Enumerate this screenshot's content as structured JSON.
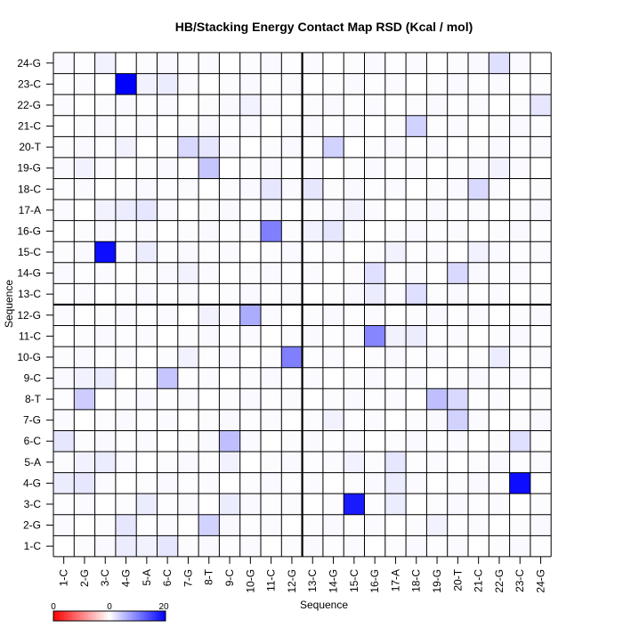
{
  "chart_data": {
    "type": "heatmap",
    "title": "HB/Stacking Energy Contact Map RSD (Kcal / mol)",
    "xlabel": "Sequence",
    "ylabel": "Sequence",
    "x_labels": [
      "1-C",
      "2-G",
      "3-C",
      "4-G",
      "5-A",
      "6-C",
      "7-G",
      "8-T",
      "9-C",
      "10-G",
      "11-C",
      "12-G",
      "13-C",
      "14-G",
      "15-C",
      "16-G",
      "17-A",
      "18-C",
      "19-G",
      "20-T",
      "21-C",
      "22-G",
      "23-C",
      "24-G"
    ],
    "y_labels": [
      "1-C",
      "2-G",
      "3-C",
      "4-G",
      "5-A",
      "6-C",
      "7-G",
      "8-T",
      "9-C",
      "10-G",
      "11-C",
      "12-G",
      "13-C",
      "14-G",
      "15-C",
      "16-G",
      "17-A",
      "18-C",
      "19-G",
      "20-T",
      "21-C",
      "22-G",
      "23-C",
      "24-G"
    ],
    "strand_divider_after": 12,
    "colorbar": {
      "min": 0,
      "mid": 0,
      "max": 20,
      "tick_labels": [
        "0",
        "0",
        "20"
      ]
    },
    "colors": {
      "low": "#ff0000",
      "zero": "#ffffff",
      "high": "#0000ff"
    },
    "default_value": 0.5,
    "cells": [
      {
        "row": "1-C",
        "col": "4-G",
        "value": 1.5
      },
      {
        "row": "1-C",
        "col": "5-A",
        "value": 1.0
      },
      {
        "row": "1-C",
        "col": "6-C",
        "value": 2.0
      },
      {
        "row": "2-G",
        "col": "4-G",
        "value": 2.0
      },
      {
        "row": "2-G",
        "col": "8-T",
        "value": 3.5
      },
      {
        "row": "2-G",
        "col": "19-G",
        "value": 1.0
      },
      {
        "row": "3-C",
        "col": "5-A",
        "value": 1.5
      },
      {
        "row": "3-C",
        "col": "9-C",
        "value": 1.5
      },
      {
        "row": "3-C",
        "col": "15-C",
        "value": 18
      },
      {
        "row": "3-C",
        "col": "17-A",
        "value": 1.5
      },
      {
        "row": "4-G",
        "col": "1-C",
        "value": 1.5
      },
      {
        "row": "4-G",
        "col": "2-G",
        "value": 2.0
      },
      {
        "row": "4-G",
        "col": "17-A",
        "value": 1.5
      },
      {
        "row": "4-G",
        "col": "23-C",
        "value": 19
      },
      {
        "row": "5-A",
        "col": "2-G",
        "value": 1.0
      },
      {
        "row": "5-A",
        "col": "3-C",
        "value": 1.5
      },
      {
        "row": "5-A",
        "col": "9-C",
        "value": 1.0
      },
      {
        "row": "5-A",
        "col": "15-C",
        "value": 1.0
      },
      {
        "row": "5-A",
        "col": "17-A",
        "value": 2.0
      },
      {
        "row": "6-C",
        "col": "1-C",
        "value": 2.0
      },
      {
        "row": "6-C",
        "col": "9-C",
        "value": 5.0
      },
      {
        "row": "6-C",
        "col": "23-C",
        "value": 2.5
      },
      {
        "row": "7-G",
        "col": "14-G",
        "value": 1.0
      },
      {
        "row": "7-G",
        "col": "20-T",
        "value": 3.5
      },
      {
        "row": "8-T",
        "col": "2-G",
        "value": 4.0
      },
      {
        "row": "8-T",
        "col": "19-G",
        "value": 5.0
      },
      {
        "row": "8-T",
        "col": "20-T",
        "value": 3.0
      },
      {
        "row": "9-C",
        "col": "2-G",
        "value": 1.0
      },
      {
        "row": "9-C",
        "col": "3-C",
        "value": 1.5
      },
      {
        "row": "9-C",
        "col": "6-C",
        "value": 4.5
      },
      {
        "row": "10-G",
        "col": "7-G",
        "value": 1.0
      },
      {
        "row": "10-G",
        "col": "12-G",
        "value": 10
      },
      {
        "row": "10-G",
        "col": "22-G",
        "value": 1.5
      },
      {
        "row": "11-C",
        "col": "16-G",
        "value": 9.5
      },
      {
        "row": "11-C",
        "col": "17-A",
        "value": 1.0
      },
      {
        "row": "11-C",
        "col": "18-C",
        "value": 1.5
      },
      {
        "row": "12-G",
        "col": "8-T",
        "value": 1.0
      },
      {
        "row": "12-G",
        "col": "10-G",
        "value": 6.5
      },
      {
        "row": "13-C",
        "col": "16-G",
        "value": 1.5
      },
      {
        "row": "13-C",
        "col": "18-C",
        "value": 2.5
      },
      {
        "row": "14-G",
        "col": "7-G",
        "value": 1.0
      },
      {
        "row": "14-G",
        "col": "16-G",
        "value": 2.5
      },
      {
        "row": "14-G",
        "col": "20-T",
        "value": 3.0
      },
      {
        "row": "15-C",
        "col": "3-C",
        "value": 19
      },
      {
        "row": "15-C",
        "col": "5-A",
        "value": 1.5
      },
      {
        "row": "15-C",
        "col": "17-A",
        "value": 1.0
      },
      {
        "row": "15-C",
        "col": "21-C",
        "value": 1.0
      },
      {
        "row": "16-G",
        "col": "11-C",
        "value": 10
      },
      {
        "row": "16-G",
        "col": "13-C",
        "value": 1.0
      },
      {
        "row": "16-G",
        "col": "14-G",
        "value": 2.0
      },
      {
        "row": "17-A",
        "col": "3-C",
        "value": 1.0
      },
      {
        "row": "17-A",
        "col": "4-G",
        "value": 1.5
      },
      {
        "row": "17-A",
        "col": "5-A",
        "value": 2.0
      },
      {
        "row": "17-A",
        "col": "15-C",
        "value": 1.0
      },
      {
        "row": "18-C",
        "col": "11-C",
        "value": 2.0
      },
      {
        "row": "18-C",
        "col": "13-C",
        "value": 2.0
      },
      {
        "row": "18-C",
        "col": "21-C",
        "value": 3.0
      },
      {
        "row": "19-G",
        "col": "2-G",
        "value": 1.0
      },
      {
        "row": "19-G",
        "col": "8-T",
        "value": 4.5
      },
      {
        "row": "19-G",
        "col": "22-G",
        "value": 1.0
      },
      {
        "row": "20-T",
        "col": "4-G",
        "value": 1.0
      },
      {
        "row": "20-T",
        "col": "7-G",
        "value": 3.0
      },
      {
        "row": "20-T",
        "col": "8-T",
        "value": 2.0
      },
      {
        "row": "20-T",
        "col": "14-G",
        "value": 3.5
      },
      {
        "row": "21-C",
        "col": "18-C",
        "value": 3.5
      },
      {
        "row": "22-G",
        "col": "10-G",
        "value": 1.0
      },
      {
        "row": "22-G",
        "col": "24-G",
        "value": 2.0
      },
      {
        "row": "23-C",
        "col": "4-G",
        "value": 20
      },
      {
        "row": "23-C",
        "col": "5-A",
        "value": 1.0
      },
      {
        "row": "23-C",
        "col": "6-C",
        "value": 1.5
      },
      {
        "row": "24-G",
        "col": "3-C",
        "value": 1.0
      },
      {
        "row": "24-G",
        "col": "22-G",
        "value": 2.5
      }
    ]
  }
}
